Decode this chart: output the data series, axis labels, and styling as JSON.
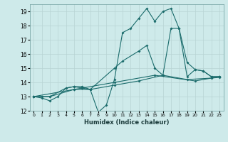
{
  "title": "",
  "xlabel": "Humidex (Indice chaleur)",
  "xlim": [
    -0.5,
    23.5
  ],
  "ylim": [
    12,
    19.5
  ],
  "yticks": [
    12,
    13,
    14,
    15,
    16,
    17,
    18,
    19
  ],
  "xticks": [
    0,
    1,
    2,
    3,
    4,
    5,
    6,
    7,
    8,
    9,
    10,
    11,
    12,
    13,
    14,
    15,
    16,
    17,
    18,
    19,
    20,
    21,
    22,
    23
  ],
  "bg_color": "#ceeaea",
  "line_color": "#1a6b6b",
  "grid_color": "#b8d4d4",
  "series": [
    {
      "x": [
        0,
        1,
        2,
        3,
        4,
        5,
        6,
        7,
        8,
        9,
        10,
        11,
        12,
        13,
        14,
        15,
        16,
        17,
        18,
        19,
        20,
        21,
        22,
        23
      ],
      "y": [
        13.0,
        12.9,
        12.7,
        13.0,
        13.6,
        13.7,
        13.7,
        13.5,
        11.9,
        12.4,
        14.2,
        17.5,
        17.8,
        18.5,
        19.2,
        18.3,
        19.0,
        19.2,
        17.8,
        14.4,
        14.9,
        14.8,
        14.4,
        14.4
      ]
    },
    {
      "x": [
        0,
        1,
        2,
        4,
        5,
        6,
        7,
        10,
        11,
        13,
        14,
        15,
        16,
        17,
        18,
        19,
        20,
        21,
        22,
        23
      ],
      "y": [
        13.0,
        13.0,
        13.0,
        13.6,
        13.7,
        13.6,
        13.5,
        15.0,
        15.5,
        16.2,
        16.6,
        15.0,
        14.5,
        17.8,
        17.8,
        15.4,
        14.9,
        14.8,
        14.4,
        14.4
      ]
    },
    {
      "x": [
        0,
        2,
        5,
        7,
        10,
        13,
        16,
        19,
        22,
        23
      ],
      "y": [
        13.0,
        13.0,
        13.5,
        13.5,
        13.8,
        14.1,
        14.5,
        14.2,
        14.3,
        14.35
      ]
    },
    {
      "x": [
        0,
        5,
        10,
        15,
        20,
        23
      ],
      "y": [
        13.0,
        13.5,
        14.0,
        14.5,
        14.1,
        14.4
      ]
    }
  ]
}
